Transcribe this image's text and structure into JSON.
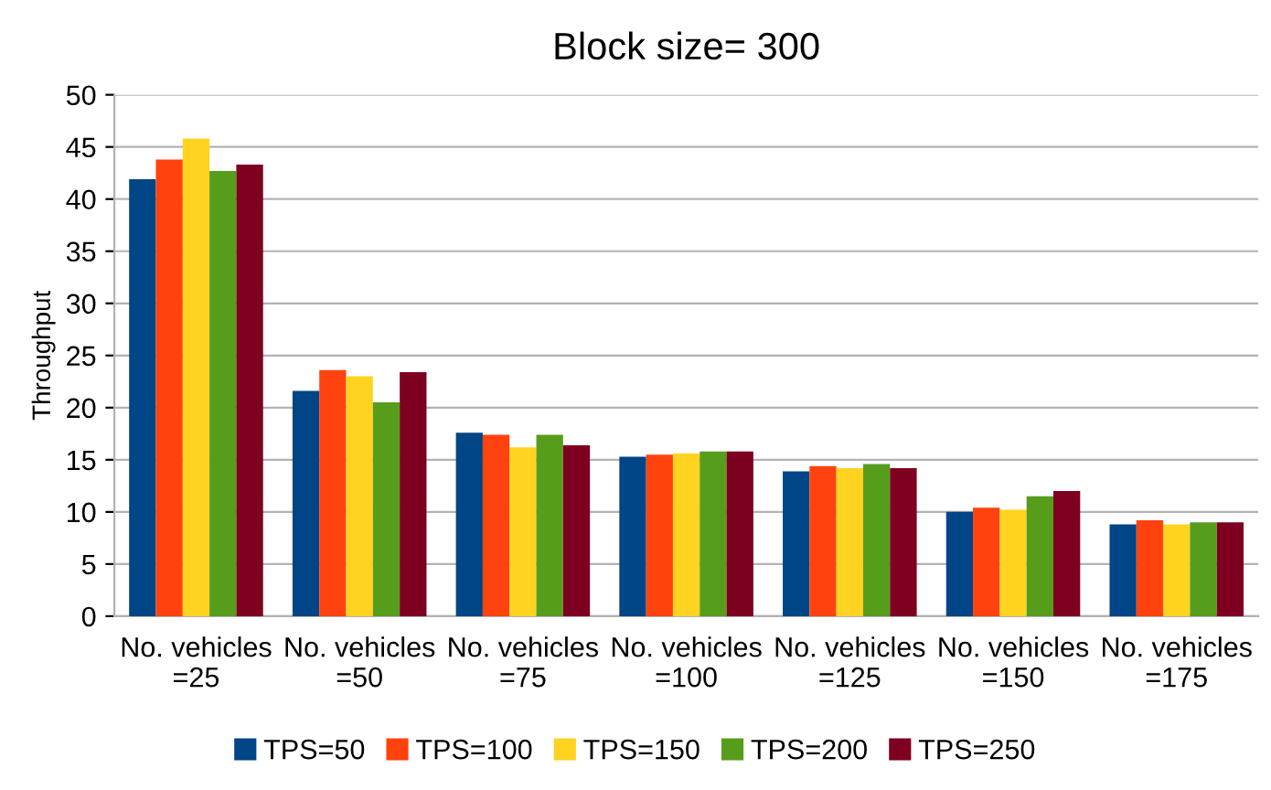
{
  "chart_data": {
    "type": "bar",
    "title": "Block size= 300",
    "ylabel": "Throughput",
    "categories": [
      "No. vehicles\n=25",
      "No. vehicles\n=50",
      "No. vehicles\n=75",
      "No. vehicles\n=100",
      "No. vehicles\n=125",
      "No. vehicles\n=150",
      "No. vehicles\n=175"
    ],
    "series": [
      {
        "name": "TPS=50",
        "color": "#004586",
        "values": [
          41.9,
          21.6,
          17.6,
          15.3,
          13.9,
          10.0,
          8.8
        ]
      },
      {
        "name": "TPS=100",
        "color": "#ff420e",
        "values": [
          43.8,
          23.6,
          17.4,
          15.5,
          14.4,
          10.4,
          9.2
        ]
      },
      {
        "name": "TPS=150",
        "color": "#ffd320",
        "values": [
          45.8,
          23.0,
          16.2,
          15.6,
          14.2,
          10.2,
          8.8
        ]
      },
      {
        "name": "TPS=200",
        "color": "#579d1c",
        "values": [
          42.7,
          20.5,
          17.4,
          15.8,
          14.6,
          11.5,
          9.0
        ]
      },
      {
        "name": "TPS=250",
        "color": "#7e0021",
        "values": [
          43.3,
          23.4,
          16.4,
          15.8,
          14.2,
          12.0,
          9.0
        ]
      }
    ],
    "ylim": [
      0,
      50
    ],
    "yticks": [
      0,
      5,
      10,
      15,
      20,
      25,
      30,
      35,
      40,
      45,
      50
    ],
    "grid": "y",
    "legend": "bottom"
  }
}
